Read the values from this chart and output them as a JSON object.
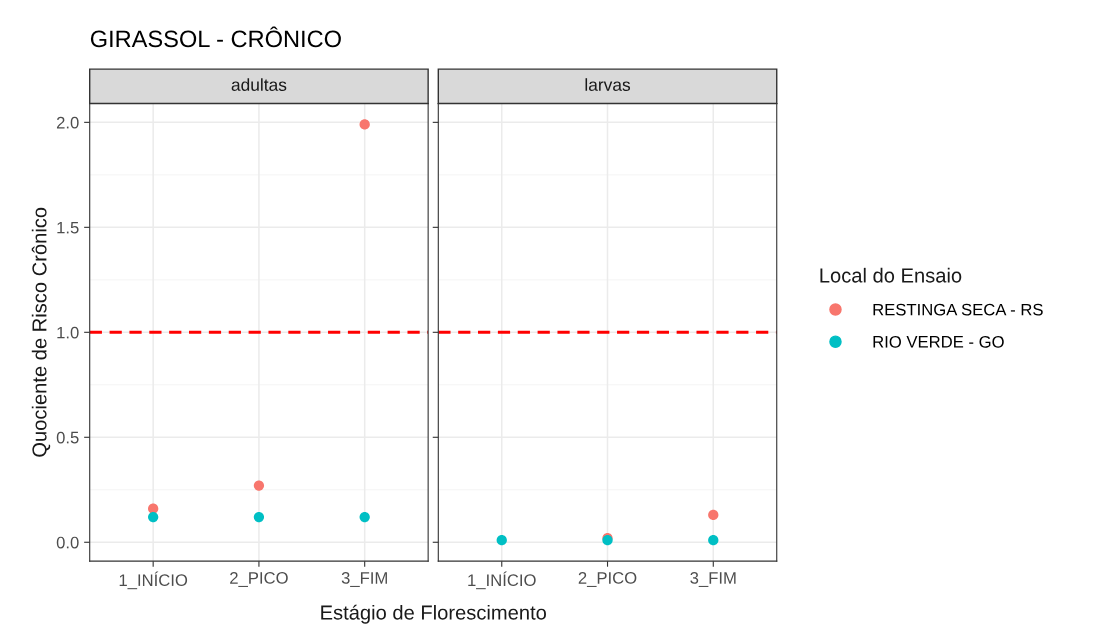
{
  "chart_data": [
    {
      "type": "scatter",
      "title": "GIRASSOL - CRÔNICO",
      "subtitle": "adultas",
      "xlabel": "Estágio de Florescimento",
      "ylabel": "Quociente de Risco Crônico",
      "categories": [
        "1_INÍCIO",
        "2_PICO",
        "3_FIM"
      ],
      "series": [
        {
          "color": "#f8766d",
          "values": [
            0.16,
            0.27,
            1.99
          ]
        },
        {
          "color": "#00bfc4",
          "values": [
            0.12,
            0.12,
            0.12
          ]
        }
      ],
      "ylim": [
        -0.09,
        2.09
      ],
      "yticks": [
        {
          "value": 0,
          "label": "0.0"
        },
        0.5,
        {
          "value": 1,
          "label": "1.0"
        },
        1.5,
        {
          "value": 2,
          "label": "2.0"
        }
      ],
      "ref_lines": [
        {
          "axis": "y",
          "value": 1.0,
          "color": "#ff0000",
          "line_style": "dashed"
        }
      ],
      "grid": true,
      "marker": "circle",
      "legend": false
    },
    {
      "type": "scatter",
      "subtitle": "larvas",
      "legend_title": "Local do Ensaio",
      "categories": [
        "1_INÍCIO",
        "2_PICO",
        "3_FIM"
      ],
      "series": [
        {
          "name": "RESTINGA SECA - RS",
          "color": "#f8766d",
          "values": [
            null,
            0.02,
            0.13
          ]
        },
        {
          "name": "RIO VERDE - GO",
          "color": "#00bfc4",
          "values": [
            0.01,
            0.01,
            0.01
          ]
        }
      ],
      "ylim": [
        -0.09,
        2.09
      ],
      "yticks": [
        {
          "value": 0,
          "label": null
        },
        {
          "value": 0.5,
          "label": null
        },
        {
          "value": 1,
          "label": null
        },
        {
          "value": 1.5,
          "label": null
        },
        {
          "value": 2,
          "label": null
        }
      ],
      "ref_lines": [
        {
          "axis": "y",
          "value": 1.0,
          "color": "#ff0000",
          "line_style": "dashed"
        }
      ],
      "grid": true,
      "marker": "circle",
      "legend": "right",
      "tick_labels": "x"
    }
  ]
}
